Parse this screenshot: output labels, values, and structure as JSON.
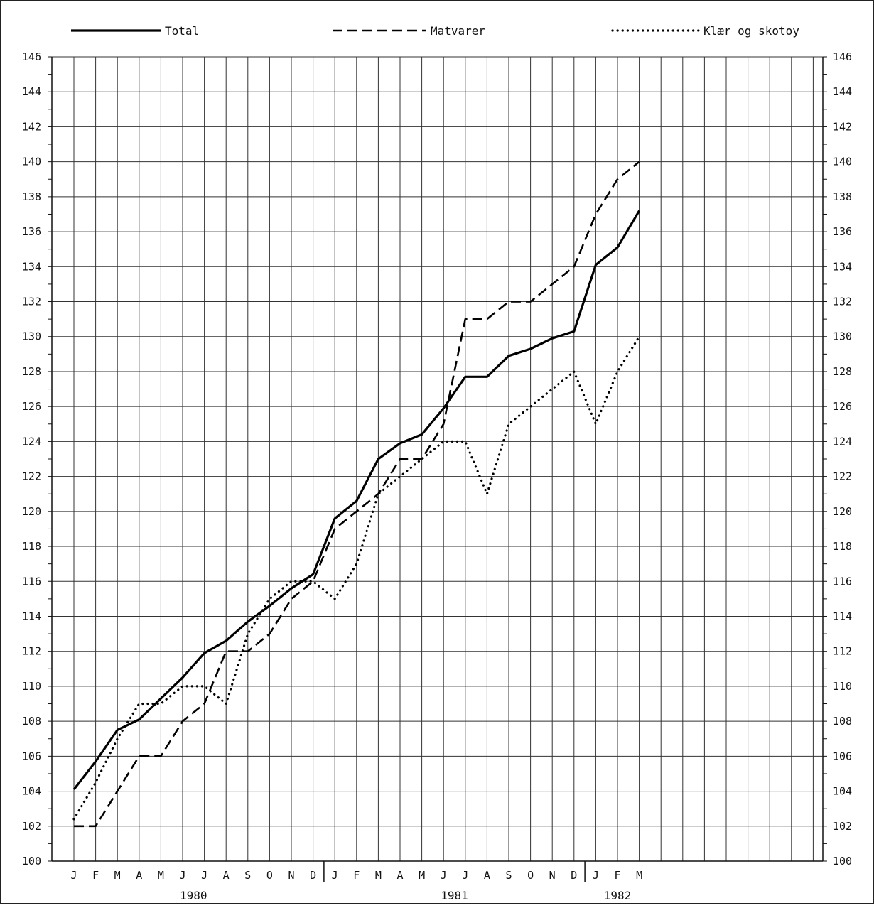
{
  "chart_data": {
    "type": "line",
    "title": "",
    "xlabel": "",
    "ylabel": "",
    "ylim": [
      100,
      146
    ],
    "y_ticks": [
      100,
      102,
      104,
      106,
      108,
      110,
      112,
      114,
      116,
      118,
      120,
      122,
      124,
      126,
      128,
      130,
      132,
      134,
      136,
      138,
      140,
      142,
      144,
      146
    ],
    "y_axis_both_sides": true,
    "grid": true,
    "legend_position": "top",
    "categories": [
      "1980-01",
      "1980-02",
      "1980-03",
      "1980-04",
      "1980-05",
      "1980-06",
      "1980-07",
      "1980-08",
      "1980-09",
      "1980-10",
      "1980-11",
      "1980-12",
      "1981-01",
      "1981-02",
      "1981-03",
      "1981-04",
      "1981-05",
      "1981-06",
      "1981-07",
      "1981-08",
      "1981-09",
      "1981-10",
      "1981-11",
      "1981-12",
      "1982-01",
      "1982-02",
      "1982-03"
    ],
    "month_labels": [
      "J",
      "F",
      "M",
      "A",
      "M",
      "J",
      "J",
      "A",
      "S",
      "O",
      "N",
      "D",
      "J",
      "F",
      "M",
      "A",
      "M",
      "J",
      "J",
      "A",
      "S",
      "O",
      "N",
      "D",
      "J",
      "F",
      "M"
    ],
    "year_labels": [
      {
        "label": "1980",
        "from_index": 0,
        "to_index": 11
      },
      {
        "label": "1981",
        "from_index": 12,
        "to_index": 23
      },
      {
        "label": "1982",
        "from_index": 24,
        "to_index": 26
      }
    ],
    "series": [
      {
        "name": "Total",
        "style": "solid",
        "color": "#000000",
        "values": [
          104.1,
          105.7,
          107.5,
          108.1,
          109.3,
          110.5,
          111.9,
          112.6,
          113.7,
          114.6,
          115.6,
          116.4,
          119.6,
          120.6,
          123.0,
          123.9,
          124.4,
          125.9,
          127.7,
          127.7,
          128.9,
          129.3,
          129.9,
          130.3,
          134.1,
          135.1,
          137.2
        ]
      },
      {
        "name": "Matvarer",
        "style": "dashed",
        "color": "#000000",
        "values": [
          102.0,
          102.0,
          104.0,
          106.0,
          106.0,
          108.0,
          109.0,
          112.0,
          112.0,
          113.0,
          115.0,
          116.0,
          119.0,
          120.0,
          121.0,
          123.0,
          123.0,
          125.0,
          131.0,
          131.0,
          132.0,
          132.0,
          133.0,
          134.0,
          137.0,
          139.0,
          140.0
        ]
      },
      {
        "name": "Klær og skotøy",
        "style": "dotted",
        "color": "#000000",
        "values": [
          102.4,
          104.5,
          107.0,
          109.0,
          109.0,
          110.0,
          110.0,
          109.0,
          113.0,
          115.0,
          116.0,
          116.0,
          115.0,
          117.0,
          121.0,
          122.0,
          123.0,
          124.0,
          124.0,
          121.0,
          125.0,
          126.0,
          127.0,
          128.0,
          125.0,
          128.0,
          130.0
        ]
      }
    ],
    "legend_labels": [
      "Total",
      "Matvarer",
      "Klær og skotoy"
    ]
  }
}
